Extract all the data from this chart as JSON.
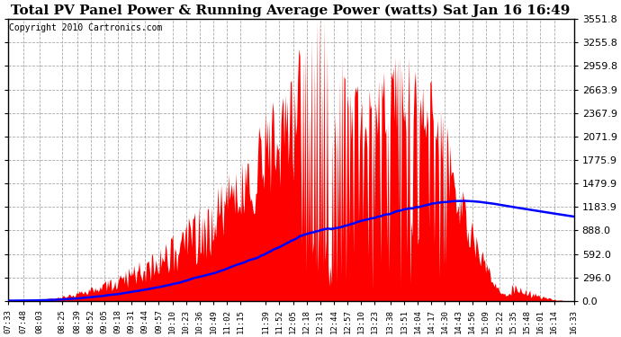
{
  "title": "Total PV Panel Power & Running Average Power (watts) Sat Jan 16 16:49",
  "copyright": "Copyright 2010 Cartronics.com",
  "background_color": "#ffffff",
  "plot_bg_color": "#ffffff",
  "bar_color": "#ff0000",
  "line_color": "#0000ff",
  "yticks": [
    0.0,
    296.0,
    592.0,
    888.0,
    1183.9,
    1479.9,
    1775.9,
    2071.9,
    2367.9,
    2663.9,
    2959.8,
    3255.8,
    3551.8
  ],
  "ymax": 3551.8,
  "xtick_labels": [
    "07:33",
    "07:48",
    "08:03",
    "08:25",
    "08:39",
    "08:52",
    "09:05",
    "09:18",
    "09:31",
    "09:44",
    "09:57",
    "10:10",
    "10:23",
    "10:36",
    "10:49",
    "11:02",
    "11:15",
    "11:39",
    "11:52",
    "12:05",
    "12:18",
    "12:31",
    "12:44",
    "12:57",
    "13:10",
    "13:23",
    "13:38",
    "13:51",
    "14:04",
    "14:17",
    "14:30",
    "14:43",
    "14:56",
    "15:09",
    "15:22",
    "15:35",
    "15:48",
    "16:01",
    "16:14",
    "16:33"
  ],
  "title_fontsize": 11,
  "copyright_fontsize": 7,
  "xtick_fontsize": 6.5,
  "ytick_fontsize": 8
}
